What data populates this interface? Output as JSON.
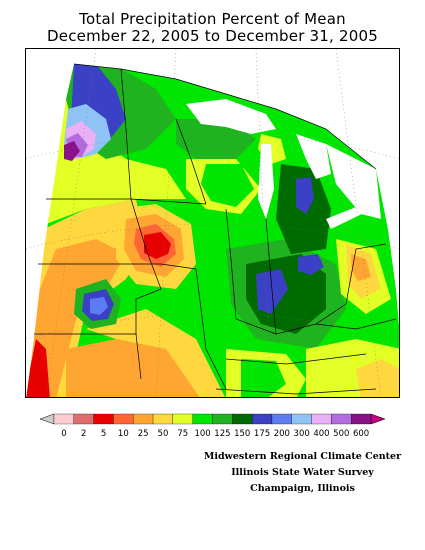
{
  "title": {
    "line1": "Total Precipitation Percent of Mean",
    "line2": "December 22, 2005 to December 31, 2005"
  },
  "legend": {
    "labels": [
      "0",
      "2",
      "5",
      "10",
      "25",
      "50",
      "75",
      "100",
      "125",
      "150",
      "175",
      "200",
      "300",
      "400",
      "500",
      "600"
    ],
    "colors": [
      "#ffcbd0",
      "#de6e6e",
      "#e60000",
      "#ff6633",
      "#ffa531",
      "#ffd83f",
      "#e2ff26",
      "#00e600",
      "#1fb41f",
      "#006b00",
      "#3b41c4",
      "#5e7cf2",
      "#8fc3f5",
      "#e9b0f5",
      "#b56be0",
      "#8a1289"
    ],
    "end_left_color": "#cccccc",
    "end_right_color": "#c1007f"
  },
  "credits": {
    "line1": "Midwestern Regional Climate Center",
    "line2": "Illinois State Water Survey",
    "line3": "Champaign, Illinois"
  },
  "colors": {
    "background": "#ffffff",
    "lake": "#ffffff",
    "boundary": "#000000"
  }
}
